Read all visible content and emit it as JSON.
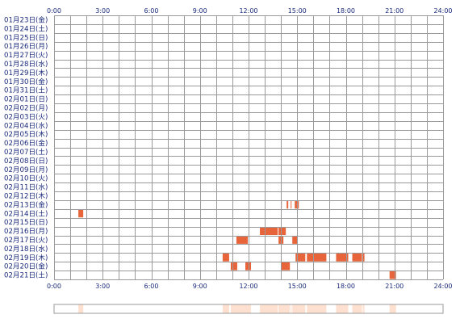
{
  "chart_data": {
    "type": "heatmap",
    "title": "",
    "xlabel": "",
    "ylabel": "",
    "x_range_hours": [
      0,
      24
    ],
    "x_ticks": [
      "0:00",
      "3:00",
      "6:00",
      "9:00",
      "12:00",
      "15:00",
      "18:00",
      "21:00",
      "24:00"
    ],
    "x_ticks_bottom": [
      "0:00",
      "3:00",
      "6:00",
      "9:00",
      "12:00",
      "15:00",
      "18:00",
      "21:00",
      "24:00"
    ],
    "grid": true,
    "colors": {
      "grid": "#9a9a9a",
      "activity": "#e8643a",
      "activity_light": "#f6b59a",
      "summary": "#fde0cf",
      "label": "#1a2a7a"
    },
    "rows": [
      "01月23日(金)",
      "01月24日(土)",
      "01月25日(日)",
      "01月26日(月)",
      "01月27日(火)",
      "01月28日(水)",
      "01月29日(木)",
      "01月30日(金)",
      "01月31日(土)",
      "02月01日(日)",
      "02月02日(月)",
      "02月03日(火)",
      "02月04日(水)",
      "02月05日(木)",
      "02月06日(金)",
      "02月07日(土)",
      "02月08日(日)",
      "02月09日(月)",
      "02月10日(火)",
      "02月11日(水)",
      "02月12日(木)",
      "02月13日(金)",
      "02月14日(土)",
      "02月15日(日)",
      "02月16日(月)",
      "02月17日(火)",
      "02月18日(水)",
      "02月19日(木)",
      "02月20日(金)",
      "02月21日(土)"
    ],
    "activity": [
      {
        "row": 21,
        "start": 14.0,
        "end": 14.05
      },
      {
        "row": 21,
        "start": 14.35,
        "end": 14.45
      },
      {
        "row": 21,
        "start": 14.6,
        "end": 14.65
      },
      {
        "row": 21,
        "start": 14.85,
        "end": 15.1
      },
      {
        "row": 22,
        "start": 1.5,
        "end": 1.8
      },
      {
        "row": 24,
        "start": 12.7,
        "end": 13.8
      },
      {
        "row": 24,
        "start": 13.85,
        "end": 14.3
      },
      {
        "row": 25,
        "start": 11.25,
        "end": 11.95
      },
      {
        "row": 25,
        "start": 13.85,
        "end": 14.15
      },
      {
        "row": 25,
        "start": 14.7,
        "end": 15.0
      },
      {
        "row": 27,
        "start": 10.4,
        "end": 10.8
      },
      {
        "row": 27,
        "start": 14.9,
        "end": 15.5
      },
      {
        "row": 27,
        "start": 15.6,
        "end": 16.8
      },
      {
        "row": 27,
        "start": 17.4,
        "end": 18.15
      },
      {
        "row": 27,
        "start": 18.4,
        "end": 19.0
      },
      {
        "row": 27,
        "start": 19.05,
        "end": 19.15
      },
      {
        "row": 28,
        "start": 10.9,
        "end": 11.3
      },
      {
        "row": 28,
        "start": 11.8,
        "end": 12.15
      },
      {
        "row": 28,
        "start": 14.0,
        "end": 14.55
      },
      {
        "row": 29,
        "start": 20.7,
        "end": 21.1
      }
    ]
  }
}
